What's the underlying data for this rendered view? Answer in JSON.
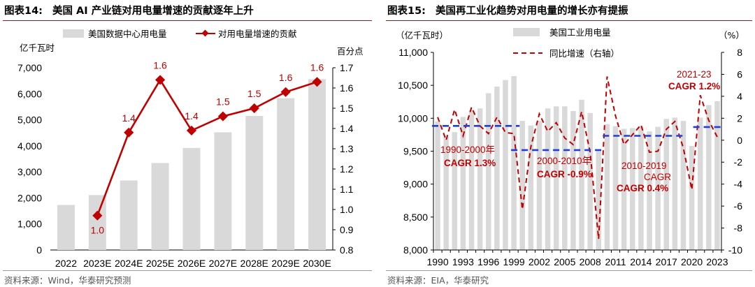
{
  "left_panel": {
    "fig_num": "图表14:",
    "fig_title": "美国 AI 产业链对用电量增速的贡献逐年上升",
    "source": "资料来源：Wind，华泰研究预测"
  },
  "right_panel": {
    "fig_num": "图表15:",
    "fig_title": "美国再工业化趋势对用电量的增长亦有提振",
    "source": "资料来源：EIA，华泰研究"
  },
  "chart_data": [
    {
      "type": "bar+line",
      "categories": [
        "2022",
        "2023E",
        "2024E",
        "2025E",
        "2026E",
        "2027E",
        "2028E",
        "2029E",
        "2030E"
      ],
      "series": [
        {
          "name": "美国数据中心用电量",
          "kind": "bar",
          "axis": "left",
          "color": "#d9d9d9",
          "values": [
            1730,
            2110,
            2670,
            3340,
            3920,
            4520,
            5150,
            5830,
            6560
          ]
        },
        {
          "name": "对用电量增速的贡献",
          "kind": "line",
          "axis": "right",
          "color": "#c00000",
          "values": [
            null,
            0.97,
            1.38,
            1.64,
            1.39,
            1.46,
            1.5,
            1.58,
            1.63
          ],
          "labels": [
            "",
            "1.0",
            "1.4",
            "1.6",
            "1.4",
            "1.5",
            "1.5",
            "1.6",
            "1.6"
          ]
        }
      ],
      "left_axis": {
        "unit": "亿千瓦时",
        "min": 0,
        "max": 7000,
        "ticks": [
          "0",
          "1,000",
          "2,000",
          "3,000",
          "4,000",
          "5,000",
          "6,000",
          "7,000"
        ]
      },
      "right_axis": {
        "unit": "百分点",
        "min": 0.8,
        "max": 1.7,
        "ticks": [
          "0.8",
          "0.9",
          "1.0",
          "1.1",
          "1.2",
          "1.3",
          "1.4",
          "1.5",
          "1.6",
          "1.7"
        ]
      },
      "legend": "top"
    },
    {
      "type": "bar+line",
      "x_start": 1990,
      "x_ticks": [
        "1990",
        "1993",
        "1996",
        "1999",
        "2002",
        "2005",
        "2008",
        "2011",
        "2014",
        "2017",
        "2020",
        "2023"
      ],
      "series": [
        {
          "name": "美国工业用电量",
          "kind": "bar",
          "axis": "left",
          "color": "#d9d9d9",
          "values": [
            9950,
            9720,
            9790,
            10020,
            10120,
            10150,
            10380,
            10480,
            10580,
            10640,
            9960,
            9890,
            9960,
            10150,
            10180,
            10180,
            10110,
            10280,
            10080,
            9500,
            9910,
            9880,
            9840,
            9850,
            9870,
            9800,
            9870,
            9990,
            10010,
            9960,
            9580,
            10010,
            10200,
            10260
          ]
        },
        {
          "name": "同比增速（右轴）",
          "kind": "dashed-line",
          "axis": "right",
          "color": "#c00000",
          "values": [
            2.1,
            0.0,
            2.8,
            0.4,
            3.0,
            1.3,
            0.6,
            2.1,
            0.7,
            0.6,
            -6.3,
            -0.6,
            2.4,
            0.8,
            1.6,
            0.2,
            -0.4,
            2.6,
            -1.1,
            -9.0,
            5.8,
            2.2,
            -0.4,
            0.5,
            1.4,
            -1.1,
            -1.0,
            1.0,
            1.7,
            -0.7,
            -4.5,
            4.1,
            1.8,
            0.3
          ]
        }
      ],
      "left_axis": {
        "unit": "（亿千瓦时）",
        "min": 8000,
        "max": 11000,
        "ticks": [
          "8,000",
          "8,500",
          "9,000",
          "9,500",
          "10,000",
          "10,500",
          "11,000"
        ]
      },
      "right_axis": {
        "unit": "（%）",
        "min": -10,
        "max": 8,
        "ticks": [
          "-10",
          "-8",
          "-6",
          "-4",
          "-2",
          "0",
          "2",
          "4",
          "6",
          "8"
        ]
      },
      "cagr_lines": [
        {
          "from": 1990,
          "to": 2000,
          "value": 1.3,
          "label1": "1990-2000年",
          "label2": "CAGR 1.3%"
        },
        {
          "from": 2000,
          "to": 2010,
          "value": -0.9,
          "label1": "2000-2010年",
          "label2": "CAGR -0.9%"
        },
        {
          "from": 2010,
          "to": 2019,
          "value": 0.4,
          "label1": "2010-2019",
          "label1b": "CAGR",
          "label2": "CAGR 0.4%"
        },
        {
          "from": 2021,
          "to": 2023,
          "value": 1.2,
          "label1": "2021-23",
          "label2": "CAGR 1.2%"
        }
      ],
      "legend": "top-center"
    }
  ]
}
